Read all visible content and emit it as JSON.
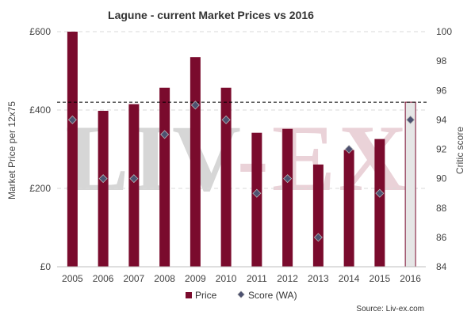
{
  "chart_data": {
    "type": "bar",
    "title": "Lagune - current Market Prices vs 2016",
    "categories": [
      "2005",
      "2006",
      "2007",
      "2008",
      "2009",
      "2010",
      "2011",
      "2012",
      "2013",
      "2014",
      "2015",
      "2016"
    ],
    "series": [
      {
        "name": "Price",
        "type": "bar",
        "axis": "left",
        "color": "#7a0b2d",
        "values": [
          600,
          398,
          415,
          457,
          535,
          457,
          342,
          352,
          261,
          298,
          326,
          null
        ]
      },
      {
        "name": "Score (WA)",
        "type": "scatter",
        "axis": "right",
        "color": "#4d5170",
        "values": [
          94,
          90,
          90,
          93,
          95,
          94,
          89,
          90,
          86,
          92,
          89,
          94
        ]
      }
    ],
    "highlight": {
      "category": "2016",
      "price": 420,
      "fill": "#e6e6e6",
      "stroke": "#7a0b2d"
    },
    "reference_line": {
      "value": 420,
      "axis": "left",
      "style": "dashed",
      "color": "#000000"
    },
    "ylabel": "Market Price per 12x75",
    "y2label": "Critic score",
    "ylim": [
      0,
      600
    ],
    "y_ticks": [
      "£0",
      "£200",
      "£400",
      "£600"
    ],
    "y2lim": [
      84,
      100
    ],
    "y2_ticks": [
      "84",
      "86",
      "88",
      "90",
      "92",
      "94",
      "96",
      "98",
      "100"
    ],
    "grid": true,
    "legend_position": "bottom",
    "watermark": "LIV-EX",
    "source": "Source: Liv-ex.com"
  }
}
